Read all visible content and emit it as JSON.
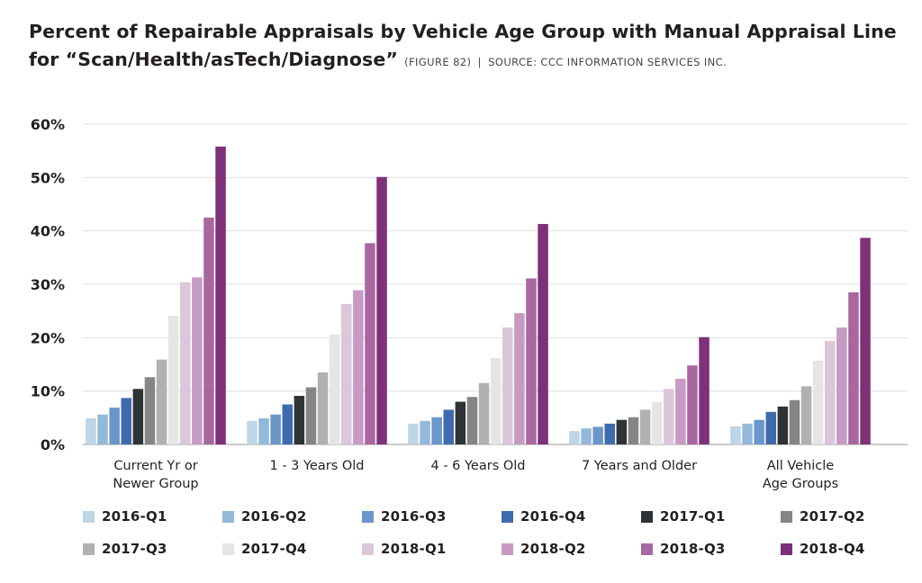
{
  "header": {
    "title_line1": "Percent of Repairable Appraisals by Vehicle Age Group with Manual Appraisal Line",
    "title_line2": "for “Scan/Health/asTech/Diagnose”",
    "figure_ref": "(FIGURE 82)",
    "separator": "|",
    "source": "SOURCE: CCC INFORMATION SERVICES INC."
  },
  "chart_data": {
    "type": "bar",
    "title": "Percent of Repairable Appraisals by Vehicle Age Group with Manual Appraisal Line for “Scan/Health/asTech/Diagnose”",
    "xlabel": "",
    "ylabel": "",
    "ylim": [
      0,
      60
    ],
    "yticks": [
      "0%",
      "10%",
      "20%",
      "30%",
      "40%",
      "50%",
      "60%"
    ],
    "ytick_values": [
      0,
      10,
      20,
      30,
      40,
      50,
      60
    ],
    "grid": true,
    "legend_position": "bottom",
    "categories": [
      [
        "Current Yr or",
        "Newer Group"
      ],
      [
        "1 - 3 Years Old"
      ],
      [
        "4 - 6 Years Old"
      ],
      [
        "7 Years and Older"
      ],
      [
        "All Vehicle",
        "Age Groups"
      ]
    ],
    "series": [
      {
        "name": "2016-Q1",
        "color": "#bdd5e6",
        "values": [
          4.9,
          4.4,
          3.9,
          2.5,
          3.4
        ]
      },
      {
        "name": "2016-Q2",
        "color": "#94b8d9",
        "values": [
          5.6,
          4.9,
          4.4,
          3.0,
          3.9
        ]
      },
      {
        "name": "2016-Q3",
        "color": "#6b96c9",
        "values": [
          6.9,
          5.6,
          5.1,
          3.3,
          4.6
        ]
      },
      {
        "name": "2016-Q4",
        "color": "#3f6aad",
        "values": [
          8.7,
          7.5,
          6.5,
          3.9,
          6.1
        ]
      },
      {
        "name": "2017-Q1",
        "color": "#2e3335",
        "values": [
          10.4,
          9.1,
          8.0,
          4.6,
          7.1
        ]
      },
      {
        "name": "2017-Q2",
        "color": "#858585",
        "values": [
          12.6,
          10.7,
          8.9,
          5.1,
          8.3
        ]
      },
      {
        "name": "2017-Q3",
        "color": "#b0b0b0",
        "values": [
          15.9,
          13.5,
          11.5,
          6.5,
          10.9
        ]
      },
      {
        "name": "2017-Q4",
        "color": "#e5e5e5",
        "values": [
          24.1,
          20.6,
          16.2,
          7.9,
          15.7
        ]
      },
      {
        "name": "2018-Q1",
        "color": "#dcc6d9",
        "values": [
          30.4,
          26.3,
          21.9,
          10.4,
          19.4
        ]
      },
      {
        "name": "2018-Q2",
        "color": "#c69ac2",
        "values": [
          31.3,
          28.9,
          24.6,
          12.3,
          21.9
        ]
      },
      {
        "name": "2018-Q3",
        "color": "#a8689f",
        "values": [
          42.5,
          37.7,
          31.1,
          14.8,
          28.5
        ]
      },
      {
        "name": "2018-Q4",
        "color": "#7d3179",
        "values": [
          55.8,
          50.1,
          41.3,
          20.1,
          38.7
        ]
      }
    ]
  }
}
